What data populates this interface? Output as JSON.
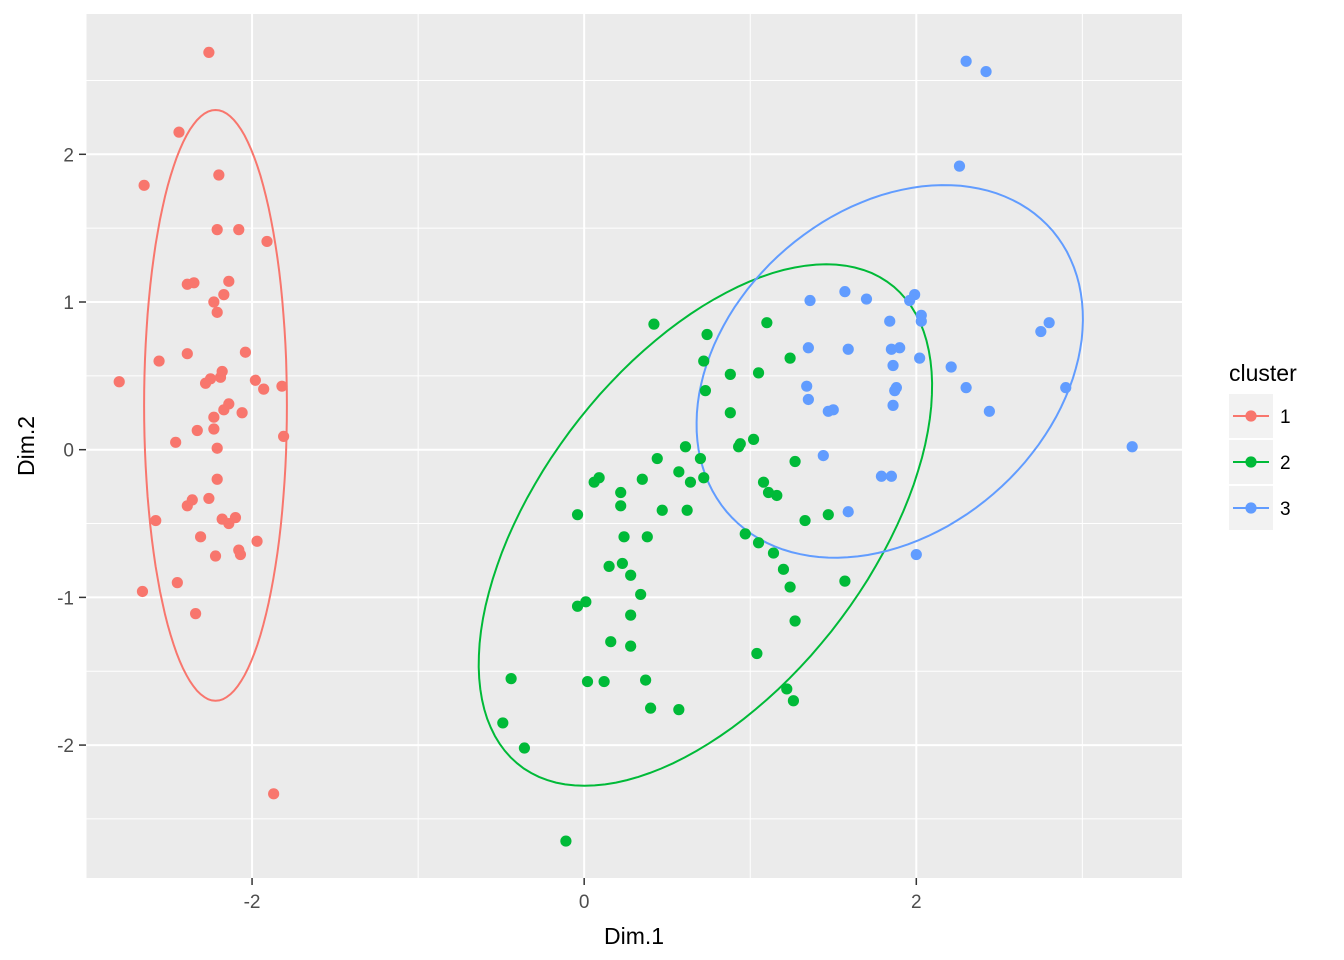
{
  "chart_data": {
    "type": "scatter",
    "title": "",
    "xlabel": "Dim.1",
    "ylabel": "Dim.2",
    "xlim": [
      -3.0,
      3.6
    ],
    "ylim": [
      -2.9,
      2.95
    ],
    "x_ticks": [
      -2,
      0,
      2
    ],
    "y_ticks": [
      -2,
      -1,
      0,
      1,
      2
    ],
    "x_tick_labels": [
      "-2",
      "0",
      "2"
    ],
    "y_tick_labels": [
      "-2",
      "-1",
      "0",
      "1",
      "2"
    ],
    "grid": true,
    "panel_background": "#ebebeb",
    "legend": {
      "title": "cluster",
      "position": "right"
    },
    "series": [
      {
        "name": "1",
        "color": "#F8766D",
        "ellipse": {
          "cx": -2.22,
          "cy": 0.3,
          "rx": 0.43,
          "ry": 2.0,
          "angle": 0
        },
        "points": [
          [
            -2.26,
            2.69
          ],
          [
            -2.44,
            2.15
          ],
          [
            -2.65,
            1.79
          ],
          [
            -2.2,
            1.86
          ],
          [
            -2.21,
            1.49
          ],
          [
            -2.08,
            1.49
          ],
          [
            -1.91,
            1.41
          ],
          [
            -2.14,
            1.14
          ],
          [
            -2.39,
            1.12
          ],
          [
            -2.35,
            1.13
          ],
          [
            -2.17,
            1.05
          ],
          [
            -2.23,
            1.0
          ],
          [
            -2.21,
            0.93
          ],
          [
            -2.04,
            0.66
          ],
          [
            -2.39,
            0.65
          ],
          [
            -2.56,
            0.6
          ],
          [
            -2.18,
            0.53
          ],
          [
            -2.19,
            0.49
          ],
          [
            -2.25,
            0.48
          ],
          [
            -2.28,
            0.45
          ],
          [
            -1.98,
            0.47
          ],
          [
            -2.8,
            0.46
          ],
          [
            -1.82,
            0.43
          ],
          [
            -1.93,
            0.41
          ],
          [
            -2.14,
            0.31
          ],
          [
            -2.17,
            0.27
          ],
          [
            -2.06,
            0.25
          ],
          [
            -2.23,
            0.22
          ],
          [
            -2.23,
            0.14
          ],
          [
            -2.33,
            0.13
          ],
          [
            -1.81,
            0.09
          ],
          [
            -2.46,
            0.05
          ],
          [
            -2.21,
            0.01
          ],
          [
            -2.21,
            -0.2
          ],
          [
            -2.26,
            -0.33
          ],
          [
            -2.36,
            -0.34
          ],
          [
            -2.39,
            -0.38
          ],
          [
            -2.58,
            -0.48
          ],
          [
            -2.1,
            -0.46
          ],
          [
            -2.18,
            -0.47
          ],
          [
            -2.14,
            -0.5
          ],
          [
            -2.31,
            -0.59
          ],
          [
            -1.97,
            -0.62
          ],
          [
            -2.08,
            -0.68
          ],
          [
            -2.07,
            -0.71
          ],
          [
            -2.22,
            -0.72
          ],
          [
            -2.45,
            -0.9
          ],
          [
            -2.66,
            -0.96
          ],
          [
            -2.34,
            -1.11
          ],
          [
            -1.87,
            -2.33
          ]
        ]
      },
      {
        "name": "2",
        "color": "#00BA38",
        "ellipse": {
          "cx": 0.73,
          "cy": -0.51,
          "rx": 1.98,
          "ry": 1.03,
          "angle": 58
        },
        "points": [
          [
            0.42,
            0.85
          ],
          [
            1.1,
            0.86
          ],
          [
            0.74,
            0.78
          ],
          [
            0.72,
            0.6
          ],
          [
            1.24,
            0.62
          ],
          [
            0.88,
            0.51
          ],
          [
            1.05,
            0.52
          ],
          [
            0.73,
            0.4
          ],
          [
            0.88,
            0.25
          ],
          [
            1.02,
            0.07
          ],
          [
            0.94,
            0.04
          ],
          [
            0.93,
            0.02
          ],
          [
            0.61,
            0.02
          ],
          [
            0.44,
            -0.06
          ],
          [
            0.7,
            -0.06
          ],
          [
            1.27,
            -0.08
          ],
          [
            0.57,
            -0.15
          ],
          [
            0.72,
            -0.19
          ],
          [
            0.09,
            -0.19
          ],
          [
            0.35,
            -0.2
          ],
          [
            0.06,
            -0.22
          ],
          [
            0.64,
            -0.22
          ],
          [
            1.08,
            -0.22
          ],
          [
            1.11,
            -0.29
          ],
          [
            1.16,
            -0.31
          ],
          [
            0.22,
            -0.29
          ],
          [
            0.22,
            -0.38
          ],
          [
            0.47,
            -0.41
          ],
          [
            0.62,
            -0.41
          ],
          [
            1.47,
            -0.44
          ],
          [
            1.33,
            -0.48
          ],
          [
            -0.04,
            -0.44
          ],
          [
            0.97,
            -0.57
          ],
          [
            0.24,
            -0.59
          ],
          [
            0.38,
            -0.59
          ],
          [
            1.05,
            -0.63
          ],
          [
            1.14,
            -0.7
          ],
          [
            0.15,
            -0.79
          ],
          [
            0.23,
            -0.77
          ],
          [
            0.28,
            -0.85
          ],
          [
            1.2,
            -0.81
          ],
          [
            1.57,
            -0.89
          ],
          [
            1.24,
            -0.93
          ],
          [
            0.34,
            -0.98
          ],
          [
            -0.04,
            -1.06
          ],
          [
            0.01,
            -1.03
          ],
          [
            0.28,
            -1.12
          ],
          [
            1.27,
            -1.16
          ],
          [
            0.16,
            -1.3
          ],
          [
            0.28,
            -1.33
          ],
          [
            1.04,
            -1.38
          ],
          [
            -0.44,
            -1.55
          ],
          [
            0.02,
            -1.57
          ],
          [
            0.12,
            -1.57
          ],
          [
            0.37,
            -1.56
          ],
          [
            1.22,
            -1.62
          ],
          [
            1.26,
            -1.7
          ],
          [
            0.4,
            -1.75
          ],
          [
            0.57,
            -1.76
          ],
          [
            -0.49,
            -1.85
          ],
          [
            -0.36,
            -2.02
          ],
          [
            -0.11,
            -2.65
          ]
        ]
      },
      {
        "name": "3",
        "color": "#619CFF",
        "ellipse": {
          "cx": 1.84,
          "cy": 0.53,
          "rx": 1.38,
          "ry": 1.02,
          "angle": 53
        },
        "points": [
          [
            2.3,
            2.63
          ],
          [
            2.42,
            2.56
          ],
          [
            2.26,
            1.92
          ],
          [
            1.57,
            1.07
          ],
          [
            1.36,
            1.01
          ],
          [
            1.7,
            1.02
          ],
          [
            1.99,
            1.05
          ],
          [
            1.96,
            1.01
          ],
          [
            2.03,
            0.91
          ],
          [
            2.03,
            0.87
          ],
          [
            1.84,
            0.87
          ],
          [
            2.8,
            0.86
          ],
          [
            2.75,
            0.8
          ],
          [
            1.35,
            0.69
          ],
          [
            1.59,
            0.68
          ],
          [
            1.85,
            0.68
          ],
          [
            1.9,
            0.69
          ],
          [
            2.02,
            0.62
          ],
          [
            1.86,
            0.57
          ],
          [
            2.21,
            0.56
          ],
          [
            1.34,
            0.43
          ],
          [
            1.88,
            0.42
          ],
          [
            1.87,
            0.4
          ],
          [
            2.3,
            0.42
          ],
          [
            2.9,
            0.42
          ],
          [
            1.35,
            0.34
          ],
          [
            1.86,
            0.3
          ],
          [
            1.5,
            0.27
          ],
          [
            1.47,
            0.26
          ],
          [
            2.44,
            0.26
          ],
          [
            3.3,
            0.02
          ],
          [
            1.44,
            -0.04
          ],
          [
            1.79,
            -0.18
          ],
          [
            1.85,
            -0.18
          ],
          [
            1.59,
            -0.42
          ],
          [
            2.0,
            -0.71
          ]
        ]
      }
    ]
  }
}
